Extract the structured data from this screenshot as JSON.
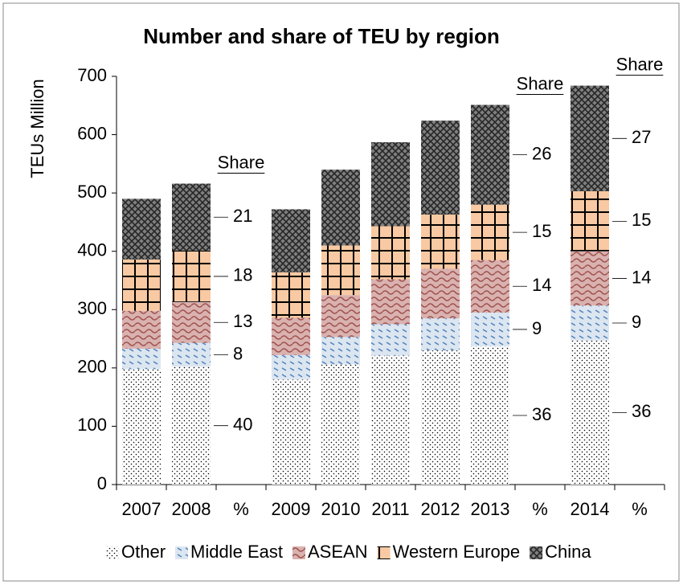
{
  "chart_data": {
    "type": "stacked_bar",
    "title": "Number and share of TEU by region",
    "y_axis_label": "TEUs Million",
    "categories": [
      "2007",
      "2008",
      "%",
      "2009",
      "2010",
      "2011",
      "2012",
      "2013",
      "%",
      "2014",
      "%"
    ],
    "series": [
      {
        "name": "Other",
        "color": "#ffffff",
        "values": [
          198,
          202,
          null,
          180,
          206,
          221,
          230,
          237,
          null,
          247,
          null
        ]
      },
      {
        "name": "Middle East",
        "color": "#dce6f0",
        "values": [
          35,
          41,
          null,
          42,
          47,
          54,
          55,
          58,
          null,
          60,
          null
        ]
      },
      {
        "name": "ASEAN",
        "color": "#d9b2b0",
        "values": [
          65,
          70,
          null,
          64,
          72,
          77,
          85,
          90,
          null,
          93,
          null
        ]
      },
      {
        "name": "Western Europe",
        "color": "#f8c9a2",
        "values": [
          88,
          88,
          null,
          78,
          85,
          91,
          93,
          95,
          null,
          103,
          null
        ]
      },
      {
        "name": "China",
        "color": "#7f7f7f",
        "values": [
          104,
          115,
          null,
          108,
          130,
          144,
          161,
          171,
          null,
          181,
          null
        ]
      }
    ],
    "annotations": [
      {
        "title": "Share",
        "values": [
          40,
          8,
          13,
          18,
          21
        ]
      },
      {
        "title": "Share",
        "values": [
          36,
          9,
          14,
          15,
          26
        ]
      },
      {
        "title": "Share",
        "values": [
          36,
          9,
          14,
          15,
          27
        ]
      }
    ],
    "ylim": [
      0,
      700
    ],
    "yticks": [
      0,
      100,
      200,
      300,
      400,
      500,
      600,
      700
    ],
    "legend": "bottom"
  }
}
